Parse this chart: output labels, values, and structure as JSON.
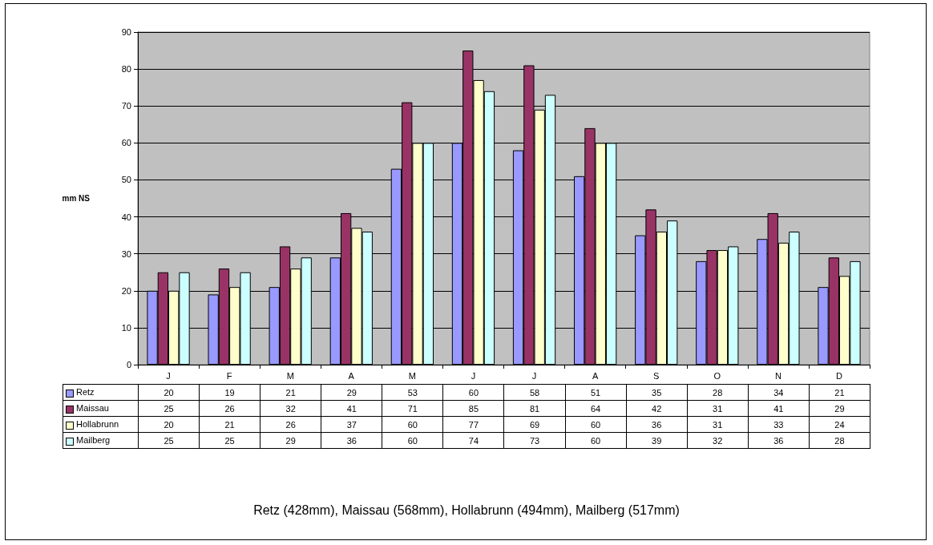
{
  "chart_data": {
    "type": "bar",
    "ylabel": "mm NS",
    "categories": [
      "J",
      "F",
      "M",
      "A",
      "M",
      "J",
      "J",
      "A",
      "S",
      "O",
      "N",
      "D"
    ],
    "series": [
      {
        "name": "Retz",
        "color": "#9999ff",
        "values": [
          20,
          19,
          21,
          29,
          53,
          60,
          58,
          51,
          35,
          28,
          34,
          21
        ]
      },
      {
        "name": "Maissau",
        "color": "#993366",
        "values": [
          25,
          26,
          32,
          41,
          71,
          85,
          81,
          64,
          42,
          31,
          41,
          29
        ]
      },
      {
        "name": "Hollabrunn",
        "color": "#ffffcc",
        "values": [
          20,
          21,
          26,
          37,
          60,
          77,
          69,
          60,
          36,
          31,
          33,
          24
        ]
      },
      {
        "name": "Mailberg",
        "color": "#ccffff",
        "values": [
          25,
          25,
          29,
          36,
          60,
          74,
          73,
          60,
          39,
          32,
          36,
          28
        ]
      }
    ],
    "ylim": [
      0,
      90
    ],
    "yticks": [
      0,
      10,
      20,
      30,
      40,
      50,
      60,
      70,
      80,
      90
    ],
    "grid": "y",
    "legend": "bottom left",
    "data_labels": true,
    "annotations": [
      "Retz (428mm),     Maissau (568mm),     Hollabrunn (494mm),     Mailberg (517mm)"
    ]
  }
}
